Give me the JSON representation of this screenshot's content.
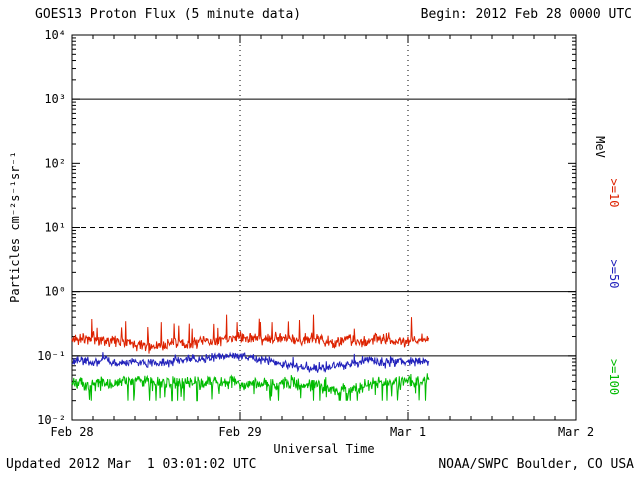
{
  "header": {
    "title": "GOES13 Proton Flux (5 minute data)",
    "begin_label": "Begin: 2012 Feb 28 0000 UTC"
  },
  "footer": {
    "updated": "Updated 2012 Mar  1 03:01:02 UTC",
    "source": "NOAA/SWPC Boulder, CO USA"
  },
  "chart_data": {
    "type": "line",
    "title": "GOES13 Proton Flux (5 minute data)",
    "xlabel": "Universal Time",
    "ylabel": "Particles cm⁻²s⁻¹sr⁻¹",
    "right_axis_label": "MeV",
    "y_scale": "log",
    "ylim": [
      0.01,
      10000
    ],
    "y_tick_labels": [
      "10⁴",
      "10³",
      "10²",
      "10¹",
      "10⁰",
      "10⁻¹",
      "10⁻²"
    ],
    "y_tick_exponents": [
      4,
      3,
      2,
      1,
      0,
      -1,
      -2
    ],
    "x_tick_labels": [
      "Feb 28",
      "Feb 29",
      "Mar 1",
      "Mar 2"
    ],
    "x_tick_hours": [
      0,
      24,
      48,
      72
    ],
    "x_range_hours": 72,
    "minutes_per_sample": 5,
    "data_start_hour": 0,
    "data_end_hour": 51,
    "solid_hlines": [
      1000,
      1,
      0.1
    ],
    "dashed_hlines": [
      10
    ],
    "day_gridline_hours": [
      24,
      48
    ],
    "grid": "partial",
    "legend_position": "right-rotated",
    "series": [
      {
        "name": ">=10",
        "color": "#dd2200",
        "base": 0.18,
        "range": [
          0.1,
          0.45
        ],
        "jitter": 0.11,
        "spike_prob": 0.03,
        "spike_log": 0.25,
        "seed": 11
      },
      {
        "name": ">=50",
        "color": "#2222bb",
        "base": 0.082,
        "range": [
          0.05,
          0.125
        ],
        "jitter": 0.08,
        "spike_prob": 0.02,
        "spike_log": 0.1,
        "seed": 23
      },
      {
        "name": ">=100",
        "color": "#00bb00",
        "base": 0.038,
        "range": [
          0.02,
          0.075
        ],
        "jitter": 0.13,
        "spike_prob": 0.06,
        "spike_log": -0.3,
        "seed": 37
      }
    ]
  }
}
